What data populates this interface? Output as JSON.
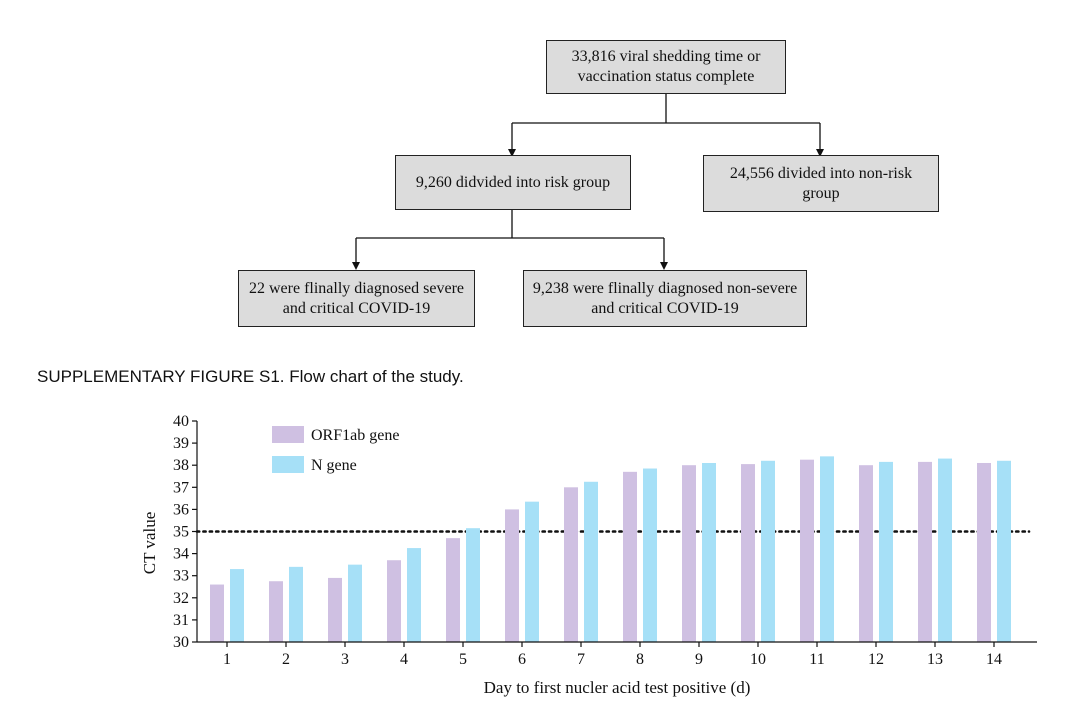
{
  "flowchart": {
    "top": "33,816 viral shedding time or vaccination status complete",
    "risk": "9,260 didvided into risk group",
    "nonrisk": "24,556 divided into non-risk group",
    "severe": "22 were flinally diagnosed severe and critical COVID-19",
    "nonsevere": "9,238 were flinally diagnosed non-severe and critical COVID-19"
  },
  "caption": "SUPPLEMENTARY FIGURE S1. Flow chart of the study.",
  "colors": {
    "orf1ab": "#cfc0e2",
    "ngene": "#a6e0f7"
  },
  "chart_data": {
    "type": "bar",
    "categories": [
      "1",
      "2",
      "3",
      "4",
      "5",
      "6",
      "7",
      "8",
      "9",
      "10",
      "11",
      "12",
      "13",
      "14"
    ],
    "series": [
      {
        "name": "ORF1ab gene",
        "values": [
          32.6,
          32.75,
          32.9,
          33.7,
          34.7,
          36.0,
          37.0,
          37.7,
          38.0,
          38.05,
          38.25,
          38.0,
          38.15,
          38.1
        ]
      },
      {
        "name": "N gene",
        "values": [
          33.3,
          33.4,
          33.5,
          34.25,
          35.15,
          36.35,
          37.25,
          37.85,
          38.1,
          38.2,
          38.4,
          38.15,
          38.3,
          38.2
        ]
      }
    ],
    "xlabel": "Day to first nucler acid test positive (d)",
    "ylabel": "CT value",
    "ylim": [
      30,
      40
    ],
    "yticks": [
      "30",
      "31",
      "32",
      "33",
      "34",
      "35",
      "36",
      "37",
      "38",
      "39",
      "40"
    ],
    "reference_line": 35,
    "legend": "top-left"
  }
}
